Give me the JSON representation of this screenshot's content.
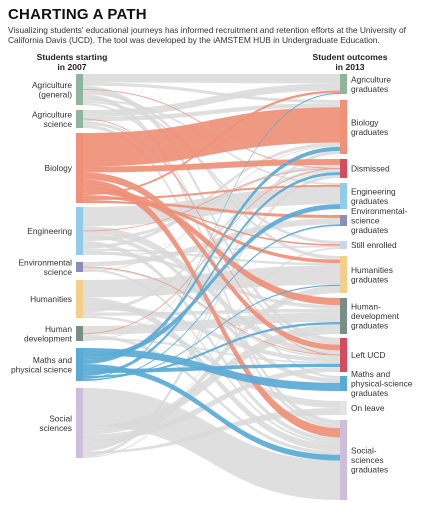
{
  "title": "CHARTING A PATH",
  "subtitle": "Visualizing students' educational journeys has informed recruitment and retention efforts at the University of California Davis (UCD). The tool was developed by the iAMSTEM HUB in Undergraduate Education.",
  "left_header": [
    "Students starting",
    "in 2007"
  ],
  "right_header": [
    "Student outcomes",
    "in 2013"
  ],
  "colors": {
    "biology": "#ef9077",
    "maths": "#5aaad6",
    "grey_flow": "#d9d9d9",
    "agriculture": "#8fb59a",
    "engineering": "#8fcbea",
    "environmental": "#8a8fb8",
    "humanities": "#f5cf8a",
    "human_development": "#7a8e88",
    "social": "#cdbfdc",
    "dismissed": "#d84a5f",
    "left_ucd": "#d84a5f"
  },
  "sources": [
    {
      "label": [
        "Agriculture",
        "(general)"
      ]
    },
    {
      "label": [
        "Agriculture",
        "science"
      ]
    },
    {
      "label": [
        "Biology"
      ]
    },
    {
      "label": [
        "Engineering"
      ]
    },
    {
      "label": [
        "Environmental",
        "science"
      ]
    },
    {
      "label": [
        "Humanities"
      ]
    },
    {
      "label": [
        "Human",
        "development"
      ]
    },
    {
      "label": [
        "Maths and",
        "physical science"
      ]
    },
    {
      "label": [
        "Social",
        "sciences"
      ]
    }
  ],
  "targets": [
    {
      "label": [
        "Agriculture",
        "graduates"
      ]
    },
    {
      "label": [
        "Biology",
        "graduates"
      ]
    },
    {
      "label": [
        "Dismissed"
      ]
    },
    {
      "label": [
        "Engineering",
        "graduates"
      ]
    },
    {
      "label": [
        "Environmental-",
        "science",
        "graduates"
      ]
    },
    {
      "label": [
        "Still enrolled"
      ]
    },
    {
      "label": [
        "Humanities",
        "graduates"
      ]
    },
    {
      "label": [
        "Human-",
        "development",
        "graduates"
      ]
    },
    {
      "label": [
        "Left UCD"
      ]
    },
    {
      "label": [
        "Maths and",
        "physical-science",
        "graduates"
      ]
    },
    {
      "label": [
        "On leave"
      ]
    },
    {
      "label": [
        "Social-",
        "sciences",
        "graduates"
      ]
    }
  ]
}
